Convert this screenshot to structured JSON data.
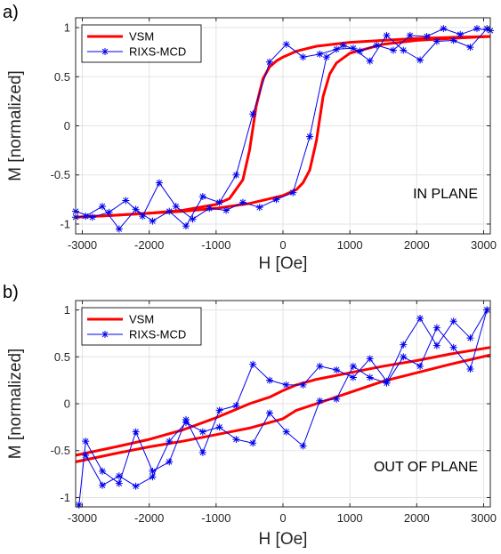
{
  "chart_data": [
    {
      "panel_label": "a)",
      "type": "line",
      "xlabel": "H [Oe]",
      "ylabel": "M [normalized]",
      "annotation": "IN PLANE",
      "xlim": [
        -3100,
        3100
      ],
      "ylim": [
        -1.1,
        1.1
      ],
      "xticks": [
        -3000,
        -2000,
        -1000,
        0,
        1000,
        2000,
        3000
      ],
      "xtick_labels": [
        "-3000",
        "-2000",
        "-1000",
        "0",
        "1000",
        "2000",
        "3000"
      ],
      "yticks": [
        -1,
        -0.5,
        0,
        0.5,
        1
      ],
      "ytick_labels": [
        "-1",
        "-0.5",
        "0",
        "0.5",
        "1"
      ],
      "grid": true,
      "legend": {
        "placement": "top-left",
        "entries": [
          "VSM",
          "RIXS-MCD"
        ]
      },
      "series": [
        {
          "name": "VSM",
          "color": "#ff0000",
          "style": "thick-line",
          "branches": [
            {
              "x": [
                -3100,
                -2500,
                -2000,
                -1500,
                -1000,
                -800,
                -600,
                -500,
                -400,
                -300,
                -200,
                -100,
                0,
                200,
                500,
                1000,
                1500,
                2000,
                2500,
                3100
              ],
              "y": [
                -0.93,
                -0.91,
                -0.89,
                -0.86,
                -0.8,
                -0.74,
                -0.55,
                -0.25,
                0.2,
                0.48,
                0.6,
                0.66,
                0.7,
                0.76,
                0.81,
                0.85,
                0.87,
                0.89,
                0.9,
                0.91
              ]
            },
            {
              "x": [
                -3100,
                -2500,
                -2000,
                -1500,
                -1000,
                -500,
                0,
                200,
                300,
                400,
                500,
                600,
                700,
                800,
                1000,
                1500,
                2000,
                2500,
                3100
              ],
              "y": [
                -0.93,
                -0.91,
                -0.89,
                -0.87,
                -0.84,
                -0.79,
                -0.71,
                -0.65,
                -0.58,
                -0.45,
                -0.15,
                0.3,
                0.53,
                0.64,
                0.74,
                0.83,
                0.87,
                0.89,
                0.91
              ]
            }
          ]
        },
        {
          "name": "RIXS-MCD",
          "color": "#0000ee",
          "style": "line-star",
          "branches": [
            {
              "x": [
                -3100,
                -2950,
                -2700,
                -2450,
                -2200,
                -1950,
                -1700,
                -1450,
                -1200,
                -950,
                -700,
                -450,
                -200,
                50,
                300,
                550,
                800,
                1050,
                1300,
                1550,
                1800,
                2050,
                2300,
                2550,
                2800,
                3050
              ],
              "y": [
                -0.93,
                -0.92,
                -0.82,
                -1.05,
                -0.85,
                -0.97,
                -0.87,
                -1.02,
                -0.72,
                -0.78,
                -0.5,
                0.12,
                0.65,
                0.83,
                0.7,
                0.73,
                0.78,
                0.79,
                0.66,
                0.92,
                0.77,
                0.67,
                0.86,
                0.87,
                0.8,
                0.99
              ]
            },
            {
              "x": [
                -3100,
                -2850,
                -2600,
                -2350,
                -2100,
                -1850,
                -1600,
                -1350,
                -1100,
                -850,
                -600,
                -350,
                -100,
                150,
                400,
                650,
                900,
                1150,
                1400,
                1650,
                1900,
                2150,
                2400,
                2650,
                2900,
                3100
              ],
              "y": [
                -0.87,
                -0.93,
                -0.88,
                -0.76,
                -0.92,
                -0.58,
                -0.82,
                -0.95,
                -0.84,
                -0.86,
                -0.78,
                -0.83,
                -0.75,
                -0.68,
                -0.11,
                0.7,
                0.82,
                0.76,
                0.82,
                0.77,
                0.92,
                0.91,
                0.99,
                0.93,
                0.99,
                0.97
              ]
            }
          ]
        }
      ]
    },
    {
      "panel_label": "b)",
      "type": "line",
      "xlabel": "H [Oe]",
      "ylabel": "M [normalized]",
      "annotation": "OUT OF PLANE",
      "xlim": [
        -3100,
        3100
      ],
      "ylim": [
        -1.1,
        1.1
      ],
      "xticks": [
        -3000,
        -2000,
        -1000,
        0,
        1000,
        2000,
        3000
      ],
      "xtick_labels": [
        "-3000",
        "-2000",
        "-1000",
        "0",
        "1000",
        "2000",
        "3000"
      ],
      "yticks": [
        -1,
        -0.5,
        0,
        0.5,
        1
      ],
      "ytick_labels": [
        "-1",
        "-0.5",
        "0",
        "0.5",
        "1"
      ],
      "grid": true,
      "legend": {
        "placement": "top-left",
        "entries": [
          "VSM",
          "RIXS-MCD"
        ]
      },
      "series": [
        {
          "name": "VSM",
          "color": "#ff0000",
          "style": "thick-line",
          "branches": [
            {
              "x": [
                -3100,
                -2500,
                -2000,
                -1500,
                -1000,
                -500,
                -200,
                0,
                200,
                500,
                1000,
                1500,
                2000,
                2500,
                3100
              ],
              "y": [
                -0.55,
                -0.46,
                -0.38,
                -0.28,
                -0.15,
                0.0,
                0.07,
                0.14,
                0.2,
                0.26,
                0.33,
                0.4,
                0.46,
                0.53,
                0.6
              ]
            },
            {
              "x": [
                -3100,
                -2500,
                -2000,
                -1500,
                -1000,
                -500,
                0,
                200,
                500,
                1000,
                1500,
                2000,
                2500,
                3100
              ],
              "y": [
                -0.62,
                -0.53,
                -0.46,
                -0.4,
                -0.33,
                -0.26,
                -0.16,
                -0.07,
                0.0,
                0.12,
                0.24,
                0.33,
                0.42,
                0.52
              ]
            }
          ]
        },
        {
          "name": "RIXS-MCD",
          "color": "#0000ee",
          "style": "line-star",
          "branches": [
            {
              "x": [
                -3050,
                -2950,
                -2700,
                -2450,
                -2200,
                -1950,
                -1700,
                -1450,
                -1200,
                -950,
                -700,
                -450,
                -200,
                50,
                300,
                550,
                800,
                1050,
                1300,
                1550,
                1800,
                2050,
                2300,
                2550,
                2800,
                3050
              ],
              "y": [
                -1.08,
                -0.4,
                -0.72,
                -0.85,
                -0.3,
                -0.72,
                -0.62,
                -0.17,
                -0.52,
                -0.07,
                -0.02,
                0.42,
                0.25,
                0.2,
                0.2,
                0.4,
                0.36,
                0.28,
                0.48,
                0.24,
                0.63,
                0.91,
                0.62,
                0.88,
                0.7,
                1.0
              ]
            },
            {
              "x": [
                -2950,
                -2700,
                -2450,
                -2200,
                -1950,
                -1700,
                -1450,
                -1200,
                -950,
                -700,
                -450,
                -200,
                50,
                300,
                550,
                800,
                1050,
                1300,
                1550,
                1800,
                2050,
                2300,
                2550,
                2800,
                3050
              ],
              "y": [
                -0.55,
                -0.87,
                -0.77,
                -0.88,
                -0.78,
                -0.4,
                -0.2,
                -0.3,
                -0.25,
                -0.38,
                -0.42,
                -0.1,
                -0.3,
                -0.45,
                0.03,
                0.05,
                0.4,
                0.28,
                0.22,
                0.5,
                0.4,
                0.81,
                0.6,
                0.37,
                1.0
              ]
            }
          ]
        }
      ]
    }
  ]
}
